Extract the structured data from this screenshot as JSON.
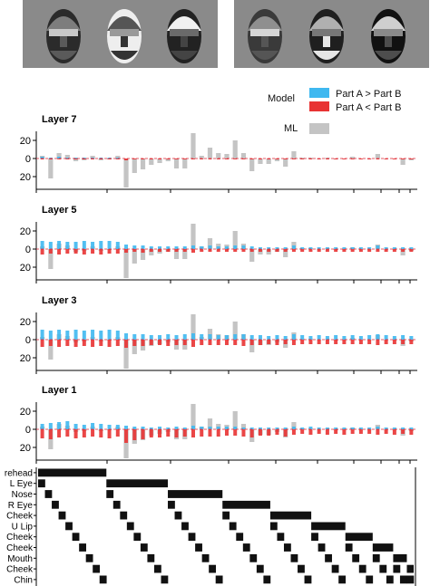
{
  "legend": {
    "model_title": "Model",
    "ml_title": "ML",
    "items": [
      {
        "label": "Part A > Part B",
        "color": "#3fb8f0"
      },
      {
        "label": "Part A < Part B",
        "color": "#e83333"
      },
      {
        "label": "",
        "color": "#c4c4c4"
      }
    ]
  },
  "colors": {
    "model_pos": "#3fb8f0",
    "model_neg": "#e83333",
    "ml": "#c4c4c4",
    "matrix": "#111111"
  },
  "faces": [
    {
      "shade": [
        "#2b2b2b",
        "#7d7d7d",
        "#c8c8c8",
        "#5a5a5a"
      ]
    },
    {
      "shade": [
        "#eeeeee",
        "#555555",
        "#9a9a9a",
        "#333333"
      ]
    },
    {
      "shade": [
        "#222222",
        "#f0f0f0",
        "#6a6a6a",
        "#444444"
      ]
    },
    {
      "shade": [
        "#3a3a3a",
        "#8f8f8f",
        "#d6d6d6",
        "#555555"
      ]
    },
    {
      "shade": [
        "#1f1f1f",
        "#b0b0b0",
        "#777777",
        "#e6e6e6"
      ]
    },
    {
      "shade": [
        "#111111",
        "#cfcfcf",
        "#8a8a8a",
        "#4d4d4d"
      ]
    }
  ],
  "chart_data": {
    "type": "bar",
    "y_ticks": [
      "20",
      "0",
      "20"
    ],
    "ylim": [
      -30,
      30
    ],
    "n_pairs": 45,
    "panels": [
      {
        "title": "Layer 7",
        "ml": [
          3,
          -22,
          6,
          4,
          -3,
          -2,
          3,
          -2,
          -1,
          3,
          -32,
          -16,
          -12,
          -7,
          -5,
          -3,
          -11,
          -11,
          28,
          3,
          12,
          6,
          5,
          20,
          6,
          -14,
          -6,
          -6,
          -3,
          -9,
          8,
          1,
          1,
          0,
          1,
          -1,
          0,
          2,
          0,
          0,
          5,
          0,
          0,
          -7,
          -2
        ],
        "model_pos": [
          2,
          1,
          2,
          1,
          1,
          1,
          1,
          1,
          1,
          1,
          0,
          0,
          0,
          0,
          0,
          0,
          0,
          0,
          0,
          0,
          0,
          0,
          0,
          0,
          0,
          0,
          0,
          0,
          0,
          0,
          0,
          0,
          0,
          0,
          0,
          0,
          0,
          0,
          0,
          0,
          0,
          0,
          0,
          0,
          0
        ],
        "model_neg": [
          -1,
          -1,
          -1,
          -1,
          -1,
          -1,
          -1,
          -1,
          -1,
          -1,
          -2,
          -1,
          -1,
          -1,
          -1,
          -1,
          -1,
          -1,
          -1,
          -1,
          -1,
          -1,
          -1,
          -1,
          -1,
          -1,
          -1,
          -1,
          -1,
          -1,
          -1,
          -1,
          -1,
          -1,
          -1,
          -1,
          -1,
          -1,
          -1,
          -1,
          -1,
          -1,
          -1,
          -1,
          -1
        ]
      },
      {
        "title": "Layer 5",
        "ml": [
          3,
          -22,
          6,
          4,
          -3,
          -2,
          3,
          -2,
          -1,
          3,
          -32,
          -16,
          -12,
          -7,
          -5,
          -3,
          -11,
          -11,
          28,
          3,
          12,
          6,
          5,
          20,
          6,
          -14,
          -6,
          -6,
          -3,
          -9,
          8,
          1,
          1,
          0,
          1,
          -1,
          0,
          2,
          0,
          0,
          5,
          0,
          0,
          -7,
          -2
        ],
        "model_pos": [
          9,
          8,
          9,
          8,
          8,
          9,
          8,
          9,
          9,
          8,
          5,
          4,
          4,
          3,
          3,
          3,
          3,
          3,
          4,
          3,
          4,
          3,
          3,
          4,
          4,
          3,
          2,
          2,
          2,
          2,
          4,
          2,
          2,
          2,
          2,
          2,
          2,
          2,
          2,
          2,
          4,
          2,
          2,
          2,
          2
        ],
        "model_neg": [
          -6,
          -5,
          -6,
          -5,
          -5,
          -6,
          -5,
          -6,
          -5,
          -5,
          -4,
          -3,
          -4,
          -3,
          -3,
          -3,
          -3,
          -3,
          -4,
          -3,
          -3,
          -3,
          -3,
          -3,
          -3,
          -3,
          -3,
          -3,
          -3,
          -3,
          -3,
          -3,
          -3,
          -3,
          -3,
          -3,
          -3,
          -3,
          -3,
          -3,
          -3,
          -3,
          -3,
          -3,
          -3
        ]
      },
      {
        "title": "Layer 3",
        "ml": [
          3,
          -22,
          6,
          4,
          -3,
          -2,
          3,
          -2,
          -1,
          3,
          -32,
          -16,
          -12,
          -7,
          -5,
          -3,
          -11,
          -11,
          28,
          3,
          12,
          6,
          5,
          20,
          6,
          -14,
          -6,
          -6,
          -3,
          -9,
          8,
          1,
          1,
          0,
          1,
          -1,
          0,
          2,
          0,
          0,
          5,
          0,
          0,
          -7,
          -2
        ],
        "model_pos": [
          11,
          10,
          11,
          10,
          11,
          10,
          11,
          10,
          11,
          10,
          7,
          6,
          6,
          5,
          5,
          6,
          5,
          6,
          7,
          6,
          6,
          5,
          5,
          6,
          6,
          5,
          5,
          4,
          5,
          4,
          6,
          5,
          4,
          5,
          4,
          5,
          4,
          5,
          4,
          5,
          6,
          5,
          4,
          5,
          4
        ],
        "model_neg": [
          -8,
          -7,
          -8,
          -7,
          -8,
          -7,
          -8,
          -7,
          -8,
          -7,
          -9,
          -7,
          -7,
          -6,
          -6,
          -7,
          -6,
          -6,
          -8,
          -6,
          -6,
          -6,
          -6,
          -6,
          -7,
          -6,
          -6,
          -5,
          -6,
          -5,
          -6,
          -5,
          -5,
          -5,
          -5,
          -5,
          -5,
          -5,
          -5,
          -5,
          -6,
          -5,
          -5,
          -5,
          -5
        ]
      },
      {
        "title": "Layer 1",
        "ml": [
          3,
          -22,
          6,
          4,
          -3,
          -2,
          3,
          -2,
          -1,
          3,
          -32,
          -16,
          -12,
          -7,
          -5,
          -3,
          -11,
          -11,
          28,
          3,
          12,
          6,
          5,
          20,
          6,
          -14,
          -6,
          -6,
          -3,
          -9,
          8,
          1,
          1,
          0,
          1,
          -1,
          0,
          2,
          0,
          0,
          5,
          0,
          0,
          -7,
          -2
        ],
        "model_pos": [
          6,
          7,
          8,
          9,
          6,
          5,
          7,
          6,
          5,
          5,
          4,
          3,
          3,
          2,
          3,
          2,
          3,
          2,
          4,
          3,
          3,
          3,
          3,
          3,
          2,
          2,
          2,
          2,
          2,
          2,
          3,
          2,
          3,
          2,
          2,
          2,
          2,
          2,
          2,
          2,
          3,
          2,
          2,
          2,
          2
        ],
        "model_neg": [
          -10,
          -11,
          -9,
          -8,
          -10,
          -9,
          -8,
          -9,
          -10,
          -8,
          -15,
          -12,
          -11,
          -9,
          -9,
          -8,
          -9,
          -8,
          -9,
          -8,
          -8,
          -8,
          -7,
          -7,
          -8,
          -9,
          -7,
          -7,
          -6,
          -8,
          -6,
          -5,
          -6,
          -5,
          -6,
          -5,
          -6,
          -5,
          -5,
          -5,
          -6,
          -5,
          -6,
          -5,
          -6
        ]
      }
    ],
    "parts": [
      "rehead",
      "L Eye",
      "Nose",
      "R Eye",
      "Cheek",
      "U Lip",
      "Cheek",
      "Cheek",
      "Mouth",
      "Cheek",
      "Chin"
    ]
  }
}
